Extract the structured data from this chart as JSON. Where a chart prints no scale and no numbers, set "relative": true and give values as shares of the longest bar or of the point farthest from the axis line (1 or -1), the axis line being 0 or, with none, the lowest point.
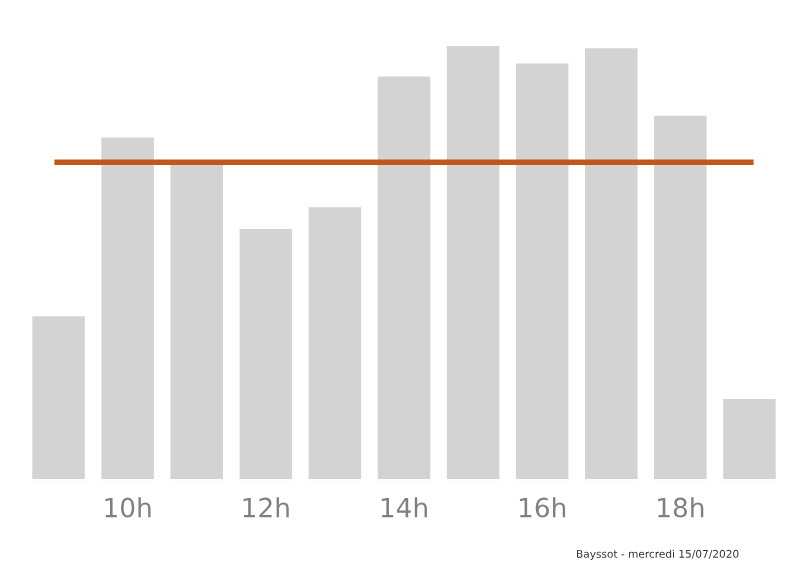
{
  "chart_data": {
    "type": "bar",
    "relative": true,
    "categories": [
      null,
      "10h",
      null,
      "12h",
      null,
      "14h",
      null,
      "16h",
      null,
      "18h",
      null
    ],
    "series": [
      {
        "color": "#d3d3d3",
        "values": [
          0.38,
          0.79,
          0.73,
          0.58,
          0.63,
          0.93,
          1,
          0.96,
          0.995,
          0.84,
          0.19
        ]
      }
    ],
    "ref_lines": [
      {
        "axis": "y",
        "value": 0.73,
        "color": "#c4561c",
        "line_style": "solid"
      }
    ],
    "annotations": [
      "Bayssot - mercredi 15/07/2020"
    ],
    "grid": false,
    "legend": false
  }
}
